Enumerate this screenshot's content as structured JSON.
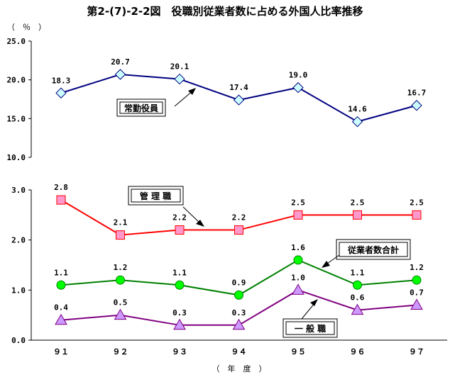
{
  "chart_data": [
    {
      "type": "line",
      "title": "第2-(7)-2-2図　役職別従業者数に占める外国人比率推移",
      "unit_label": "（　％　）",
      "xlabel": "（　年　度　）",
      "categories": [
        "９１",
        "９２",
        "９３",
        "９４",
        "９５",
        "９６",
        "９７"
      ],
      "ylim": [
        10.0,
        25.0
      ],
      "yticks": [
        "10.0",
        "15.0",
        "20.0",
        "25.0"
      ],
      "series": [
        {
          "name": "常勤役員",
          "values": [
            18.3,
            20.7,
            20.1,
            17.4,
            19.0,
            14.6,
            16.7
          ],
          "labels": [
            "18.3",
            "20.7",
            "20.1",
            "17.4",
            "19.0",
            "14.6",
            "16.7"
          ],
          "color": "#000080",
          "marker": "diamond",
          "marker_fill": "#ccffff"
        }
      ]
    },
    {
      "type": "line",
      "categories": [
        "９１",
        "９２",
        "９３",
        "９４",
        "９５",
        "９６",
        "９７"
      ],
      "ylim": [
        0.0,
        3.0
      ],
      "yticks": [
        "0.0",
        "1.0",
        "2.0",
        "3.0"
      ],
      "series": [
        {
          "name": "管 理 職",
          "values": [
            2.8,
            2.1,
            2.2,
            2.2,
            2.5,
            2.5,
            2.5
          ],
          "labels": [
            "2.8",
            "2.1",
            "2.2",
            "2.2",
            "2.5",
            "2.5",
            "2.5"
          ],
          "color": "#ff0000",
          "marker": "square",
          "marker_fill": "#ff99cc"
        },
        {
          "name": "従業者数合計",
          "values": [
            1.1,
            1.2,
            1.1,
            0.9,
            1.6,
            1.1,
            1.2
          ],
          "labels": [
            "1.1",
            "1.2",
            "1.1",
            "0.9",
            "1.6",
            "1.1",
            "1.2"
          ],
          "color": "#008000",
          "marker": "circle",
          "marker_fill": "#00ff00"
        },
        {
          "name": "一 般 職",
          "values": [
            0.4,
            0.5,
            0.3,
            0.3,
            1.0,
            0.6,
            0.7
          ],
          "labels": [
            "0.4",
            "0.5",
            "0.3",
            "0.3",
            "1.0",
            "0.6",
            "0.7"
          ],
          "color": "#800080",
          "marker": "triangle",
          "marker_fill": "#cc99ff"
        }
      ]
    }
  ]
}
